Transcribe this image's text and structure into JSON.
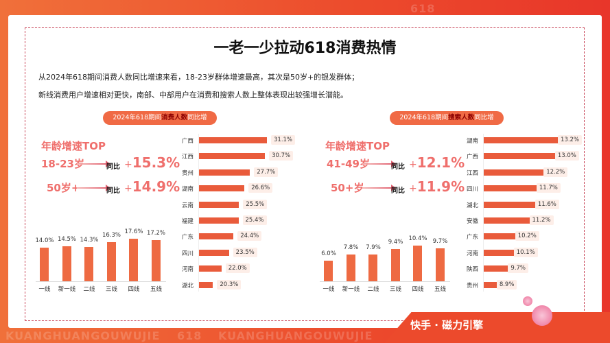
{
  "title": "一老一少拉动618消费热情",
  "desc": [
    "从2024年618期间消费人数同比增速来看，18-23岁群体增速最高，其次是50岁+的银发群体；",
    "新线消费用户增速相对更快，南部、中部用户在消费和搜索人数上整体表现出较强增长潜能。"
  ],
  "watermark": [
    "618",
    "KUANGHUANGOUWUJIE",
    "618",
    "KUANGHUANGOUWUJIE",
    "618"
  ],
  "brand": "快手 · 磁力引擎",
  "colors": {
    "accent": "#ee6a42",
    "highlight": "#ef6f6c",
    "background": "#ec4a2c"
  },
  "panels": [
    {
      "pill_pre": "2024年618期间",
      "pill_em": "消费人数",
      "pill_post": "同比增速",
      "top_title": "年龄增速TOP",
      "yoy": "同比",
      "plus": "+",
      "ages": [
        {
          "age": "18-23岁",
          "value": "15.3%"
        },
        {
          "age": "50岁+",
          "value": "14.9%"
        }
      ]
    },
    {
      "pill_pre": "2024年618期间",
      "pill_em": "搜索人数",
      "pill_post": "同比增速",
      "top_title": "年龄增速TOP",
      "yoy": "同比",
      "plus": "+",
      "ages": [
        {
          "age": "41-49岁",
          "value": "12.1%"
        },
        {
          "age": "50+岁",
          "value": "11.9%"
        }
      ]
    }
  ],
  "chart_data": [
    {
      "type": "bar",
      "orientation": "vertical",
      "categories": [
        "一线",
        "新一线",
        "二线",
        "三线",
        "四线",
        "五线"
      ],
      "values": [
        14.0,
        14.5,
        14.3,
        16.3,
        17.6,
        17.2
      ],
      "labels": [
        "14.0%",
        "14.5%",
        "14.3%",
        "16.3%",
        "17.6%",
        "17.2%"
      ],
      "ylim": [
        0,
        20
      ]
    },
    {
      "type": "bar",
      "orientation": "horizontal",
      "categories": [
        "广西",
        "江西",
        "贵州",
        "湖南",
        "云南",
        "福建",
        "广东",
        "四川",
        "河南",
        "湖北"
      ],
      "values": [
        31.1,
        30.7,
        27.7,
        26.6,
        25.5,
        25.4,
        24.4,
        23.5,
        22.0,
        20.3
      ],
      "labels": [
        "31.1%",
        "30.7%",
        "27.7%",
        "26.6%",
        "25.5%",
        "25.4%",
        "24.4%",
        "23.5%",
        "22.0%",
        "20.3%"
      ],
      "xlim": [
        17.5,
        31.1
      ]
    },
    {
      "type": "bar",
      "orientation": "vertical",
      "categories": [
        "一线",
        "新一线",
        "二线",
        "三线",
        "四线",
        "五线"
      ],
      "values": [
        6.0,
        7.8,
        7.9,
        9.4,
        10.4,
        9.7
      ],
      "labels": [
        "6.0%",
        "7.8%",
        "7.9%",
        "9.4%",
        "10.4%",
        "9.7%"
      ],
      "ylim": [
        0,
        12
      ]
    },
    {
      "type": "bar",
      "orientation": "horizontal",
      "categories": [
        "湖南",
        "广西",
        "江西",
        "四川",
        "湖北",
        "安徽",
        "广东",
        "河南",
        "陕西",
        "贵州"
      ],
      "values": [
        13.2,
        13.0,
        12.2,
        11.7,
        11.6,
        11.2,
        10.2,
        10.1,
        9.7,
        8.9
      ],
      "labels": [
        "13.2%",
        "13.0%",
        "12.2%",
        "11.7%",
        "11.6%",
        "11.2%",
        "10.2%",
        "10.1%",
        "9.7%",
        "8.9%"
      ],
      "xlim": [
        7.8,
        13.2
      ]
    }
  ]
}
